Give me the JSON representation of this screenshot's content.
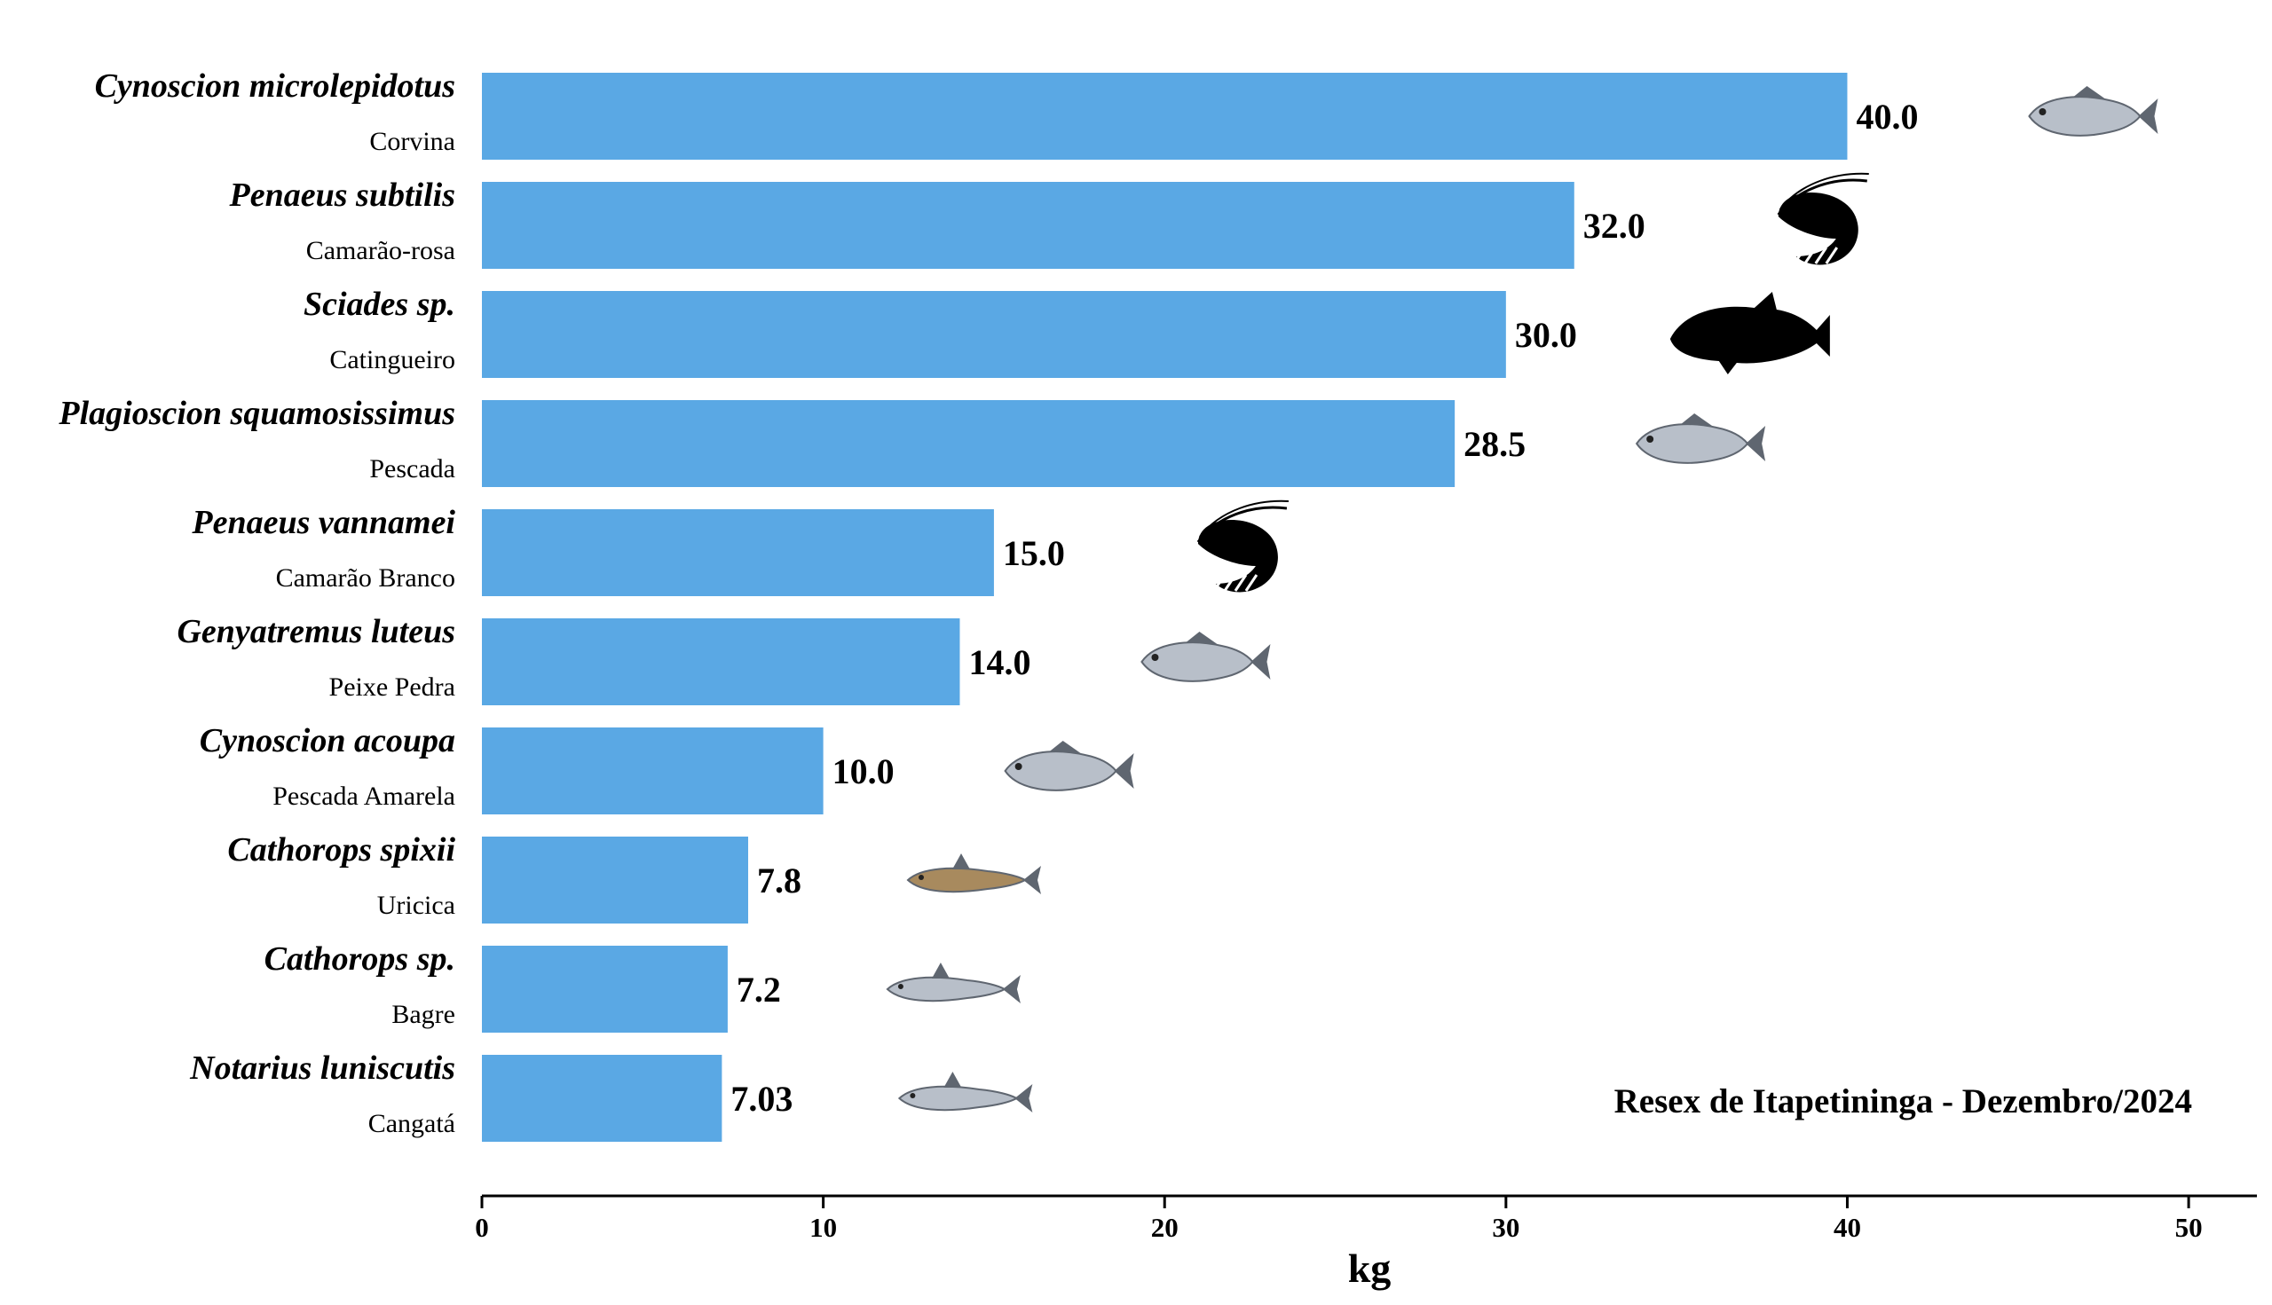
{
  "chart_data": {
    "type": "bar",
    "orientation": "horizontal",
    "categories": [
      {
        "scientific": "Cynoscion microlepidotus",
        "common": "Corvina",
        "icon": "fish-photo-icon"
      },
      {
        "scientific": "Penaeus subtilis",
        "common": "Camarão-rosa",
        "icon": "shrimp-silhouette-icon"
      },
      {
        "scientific": "Sciades sp.",
        "common": "Catingueiro",
        "icon": "fish-silhouette-icon"
      },
      {
        "scientific": "Plagioscion squamosissimus",
        "common": "Pescada",
        "icon": "fish-photo-icon"
      },
      {
        "scientific": "Penaeus vannamei",
        "common": "Camarão Branco",
        "icon": "shrimp-silhouette-icon"
      },
      {
        "scientific": "Genyatremus luteus",
        "common": "Peixe Pedra",
        "icon": "fish-photo-icon"
      },
      {
        "scientific": "Cynoscion acoupa",
        "common": "Pescada Amarela",
        "icon": "fish-photo-icon"
      },
      {
        "scientific": "Cathorops spixii",
        "common": "Uricica",
        "icon": "catfish-photo-icon"
      },
      {
        "scientific": "Cathorops sp.",
        "common": "Bagre",
        "icon": "catfish-photo-icon"
      },
      {
        "scientific": "Notarius luniscutis",
        "common": "Cangatá",
        "icon": "catfish-photo-icon"
      }
    ],
    "values": [
      40.0,
      32.0,
      30.0,
      28.5,
      15.0,
      14.0,
      10.0,
      7.8,
      7.2,
      7.03
    ],
    "value_labels": [
      "40.0",
      "32.0",
      "30.0",
      "28.5",
      "15.0",
      "14.0",
      "10.0",
      "7.8",
      "7.2",
      "7.03"
    ],
    "xlabel": "kg",
    "xlim": [
      0,
      52
    ],
    "xticks": [
      0,
      10,
      20,
      30,
      40,
      50
    ],
    "annotation": "Resex de Itapetininga - Dezembro/2024",
    "grid": false,
    "colors": {
      "bar": "#5aa8e4",
      "axis": "#000000",
      "icon_dark": "#000000",
      "fish_body": "#b8bfc9",
      "fish_brown": "#a88a5e",
      "fish_dark": "#5f6670"
    }
  }
}
